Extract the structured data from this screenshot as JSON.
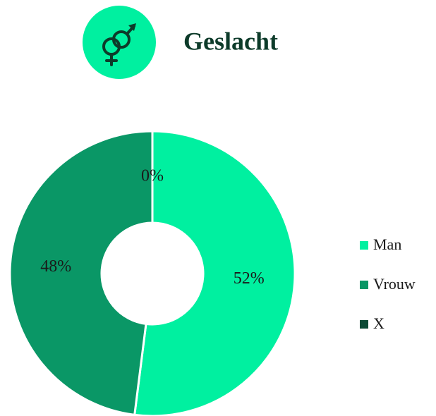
{
  "chart_data": {
    "type": "donut",
    "title": "Geslacht",
    "categories": [
      "Man",
      "Vrouw",
      "X"
    ],
    "values": [
      52,
      48,
      0
    ],
    "value_labels": [
      "52%",
      "48%",
      "0%"
    ],
    "colors": [
      "#00f0a0",
      "#0a9766",
      "#0b4a35"
    ],
    "legend": "right"
  }
}
